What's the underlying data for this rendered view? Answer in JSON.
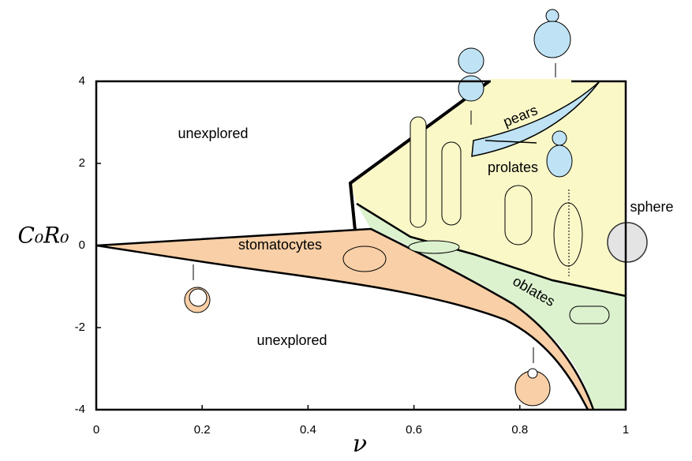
{
  "chart_data": {
    "type": "phase-diagram",
    "x_label": "ν",
    "y_label": "C₀R₀",
    "xlim": [
      0,
      1
    ],
    "ylim": [
      -4,
      4
    ],
    "xticks": [
      0,
      0.2,
      0.4,
      0.6,
      0.8,
      1
    ],
    "yticks": [
      4,
      2,
      0,
      -2,
      -4
    ],
    "annotations": [
      "unexplored",
      "unexplored",
      "stomatocytes",
      "prolates",
      "pears",
      "oblates",
      "sphere"
    ]
  }
}
